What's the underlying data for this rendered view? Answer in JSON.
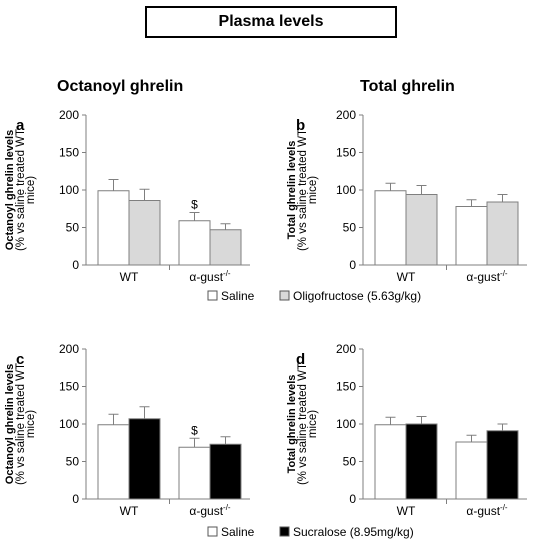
{
  "figure_title": "Plasma levels",
  "section_titles": {
    "left": "Octanoyl ghrelin",
    "right": "Total ghrelin"
  },
  "colors": {
    "saline": "#ffffff",
    "oligofructose": "#d9d9d9",
    "sucralose": "#000000",
    "bar_outline": "#7f7f7f",
    "axis": "#7f7f7f"
  },
  "legends": [
    {
      "items": [
        {
          "label": "Saline",
          "color": "#ffffff"
        },
        {
          "label": "Oligofructose (5.63g/kg)",
          "color": "#d9d9d9"
        }
      ]
    },
    {
      "items": [
        {
          "label": "Saline",
          "color": "#ffffff"
        },
        {
          "label": "Sucralose (8.95mg/kg)",
          "color": "#000000"
        }
      ]
    }
  ],
  "chart_data": [
    {
      "type": "bar",
      "panel": "a",
      "ylabel_line1": "Octanoyl ghrelin levels",
      "ylabel_line2": "(% vs saline treated WT",
      "ylabel_line3": "mice)",
      "yticks": [
        "0",
        "50",
        "100",
        "150",
        "200"
      ],
      "ylim": [
        0,
        200
      ],
      "categories": [
        "WT",
        "α-gust"
      ],
      "category_superscripts": [
        "",
        "-/-"
      ],
      "series": [
        {
          "name": "Saline",
          "color": "#ffffff",
          "values": [
            99,
            59
          ],
          "errors": [
            15,
            11
          ]
        },
        {
          "name": "Oligofructose (5.63g/kg)",
          "color": "#d9d9d9",
          "values": [
            86,
            47
          ],
          "errors": [
            15,
            8
          ]
        }
      ],
      "annotations": [
        {
          "text": "$",
          "category": 1,
          "series": 0
        }
      ]
    },
    {
      "type": "bar",
      "panel": "b",
      "ylabel_line1": "Total ghrelin levels",
      "ylabel_line2": "(% vs saline treated WT",
      "ylabel_line3": "mice)",
      "yticks": [
        "0",
        "50",
        "100",
        "150",
        "200"
      ],
      "ylim": [
        0,
        200
      ],
      "categories": [
        "WT",
        "α-gust"
      ],
      "category_superscripts": [
        "",
        "-/-"
      ],
      "series": [
        {
          "name": "Saline",
          "color": "#ffffff",
          "values": [
            99,
            78
          ],
          "errors": [
            10,
            9
          ]
        },
        {
          "name": "Oligofructose (5.63g/kg)",
          "color": "#d9d9d9",
          "values": [
            94,
            84
          ],
          "errors": [
            12,
            10
          ]
        }
      ],
      "annotations": []
    },
    {
      "type": "bar",
      "panel": "c",
      "ylabel_line1": "Octanoyl ghrelin levels",
      "ylabel_line2": "(% vs saline treated WT",
      "ylabel_line3": "mice)",
      "yticks": [
        "0",
        "50",
        "100",
        "150",
        "200"
      ],
      "ylim": [
        0,
        200
      ],
      "categories": [
        "WT",
        "α-gust"
      ],
      "category_superscripts": [
        "",
        "-/-"
      ],
      "series": [
        {
          "name": "Saline",
          "color": "#ffffff",
          "values": [
            99,
            69
          ],
          "errors": [
            14,
            12
          ]
        },
        {
          "name": "Sucralose (8.95mg/kg)",
          "color": "#000000",
          "values": [
            107,
            73
          ],
          "errors": [
            16,
            10
          ]
        }
      ],
      "annotations": [
        {
          "text": "$",
          "category": 1,
          "series": 0
        }
      ]
    },
    {
      "type": "bar",
      "panel": "d",
      "ylabel_line1": "Total ghrelin levels",
      "ylabel_line2": "(% vs saline treated WT",
      "ylabel_line3": "mice)",
      "yticks": [
        "0",
        "50",
        "100",
        "150",
        "200"
      ],
      "ylim": [
        0,
        200
      ],
      "categories": [
        "WT",
        "α-gust"
      ],
      "category_superscripts": [
        "",
        "-/-"
      ],
      "series": [
        {
          "name": "Saline",
          "color": "#ffffff",
          "values": [
            99,
            76
          ],
          "errors": [
            10,
            9
          ]
        },
        {
          "name": "Sucralose (8.95mg/kg)",
          "color": "#000000",
          "values": [
            100,
            91
          ],
          "errors": [
            10,
            9
          ]
        }
      ],
      "annotations": []
    }
  ]
}
